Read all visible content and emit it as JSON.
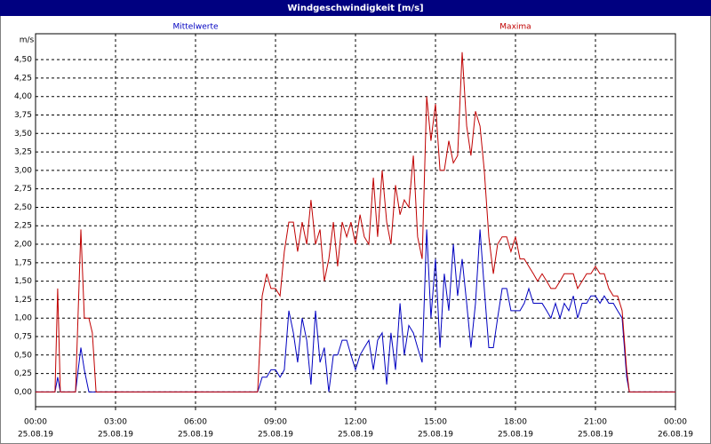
{
  "chart_data": {
    "type": "line",
    "title": "Windgeschwindigkeit [m/s]",
    "y_label": "m/s",
    "xlim": [
      0,
      24
    ],
    "xticks": [
      {
        "value": 0,
        "label": "00:00"
      },
      {
        "value": 3,
        "label": "03:00"
      },
      {
        "value": 6,
        "label": "06:00"
      },
      {
        "value": 9,
        "label": "09:00"
      },
      {
        "value": 12,
        "label": "12:00"
      },
      {
        "value": 15,
        "label": "15:00"
      },
      {
        "value": 18,
        "label": "18:00"
      },
      {
        "value": 21,
        "label": "21:00"
      },
      {
        "value": 24,
        "label": "00:00"
      }
    ],
    "xtick_dates": [
      "25.08.19",
      "25.08.19",
      "25.08.19",
      "25.08.19",
      "25.08.19",
      "25.08.19",
      "25.08.19",
      "25.08.19",
      "26.08.19"
    ],
    "ylim": [
      -0.2,
      4.85
    ],
    "yticks": [
      {
        "value": 0,
        "label": "0,00"
      },
      {
        "value": 0.25,
        "label": "0,25"
      },
      {
        "value": 0.5,
        "label": "0,50"
      },
      {
        "value": 0.75,
        "label": "0,75"
      },
      {
        "value": 1,
        "label": "1,00"
      },
      {
        "value": 1.25,
        "label": "1,25"
      },
      {
        "value": 1.5,
        "label": "1,50"
      },
      {
        "value": 1.75,
        "label": "1,75"
      },
      {
        "value": 2,
        "label": "2,00"
      },
      {
        "value": 2.25,
        "label": "2,25"
      },
      {
        "value": 2.5,
        "label": "2,50"
      },
      {
        "value": 2.75,
        "label": "2,75"
      },
      {
        "value": 3,
        "label": "3,00"
      },
      {
        "value": 3.25,
        "label": "3,25"
      },
      {
        "value": 3.5,
        "label": "3,50"
      },
      {
        "value": 3.75,
        "label": "3,75"
      },
      {
        "value": 4,
        "label": "4,00"
      },
      {
        "value": 4.25,
        "label": "4,25"
      },
      {
        "value": 4.5,
        "label": "4,50"
      }
    ],
    "grid": true,
    "x": [
      0,
      0.73,
      0.83,
      0.93,
      1.5,
      1.7,
      1.83,
      2,
      2.13,
      2.27,
      8.33,
      8.5,
      8.67,
      8.83,
      9,
      9.17,
      9.33,
      9.5,
      9.67,
      9.83,
      10,
      10.17,
      10.33,
      10.5,
      10.67,
      10.83,
      11,
      11.17,
      11.33,
      11.5,
      11.67,
      11.83,
      12,
      12.17,
      12.33,
      12.5,
      12.67,
      12.83,
      13,
      13.17,
      13.33,
      13.5,
      13.67,
      13.83,
      14,
      14.17,
      14.33,
      14.5,
      14.67,
      14.83,
      15,
      15.17,
      15.33,
      15.5,
      15.67,
      15.83,
      16,
      16.17,
      16.33,
      16.5,
      16.67,
      16.83,
      17,
      17.17,
      17.33,
      17.5,
      17.67,
      17.83,
      18,
      18.17,
      18.33,
      18.5,
      18.67,
      18.83,
      19,
      19.17,
      19.33,
      19.5,
      19.67,
      19.83,
      20,
      20.17,
      20.33,
      20.5,
      20.67,
      20.83,
      21,
      21.17,
      21.33,
      21.5,
      21.67,
      21.83,
      22,
      22.17,
      22.27,
      24
    ],
    "series": [
      {
        "name": "Mittelwerte",
        "color": "#0000c0",
        "values": [
          0,
          0,
          0.2,
          0,
          0,
          0.6,
          0.3,
          0,
          0,
          0,
          0,
          0.2,
          0.2,
          0.3,
          0.3,
          0.2,
          0.3,
          1.1,
          0.8,
          0.4,
          1.0,
          0.7,
          0.1,
          1.1,
          0.4,
          0.6,
          0.0,
          0.5,
          0.5,
          0.7,
          0.7,
          0.5,
          0.3,
          0.5,
          0.6,
          0.7,
          0.3,
          0.7,
          0.8,
          0.1,
          0.8,
          0.3,
          1.2,
          0.5,
          0.9,
          0.8,
          0.6,
          0.4,
          2.2,
          1.0,
          1.8,
          0.6,
          1.6,
          1.1,
          2.0,
          1.3,
          1.8,
          1.2,
          0.6,
          1.2,
          2.2,
          1.4,
          0.6,
          0.6,
          1.0,
          1.4,
          1.4,
          1.1,
          1.1,
          1.1,
          1.2,
          1.4,
          1.2,
          1.2,
          1.2,
          1.1,
          1.0,
          1.2,
          1.0,
          1.2,
          1.1,
          1.3,
          1.0,
          1.2,
          1.2,
          1.3,
          1.3,
          1.2,
          1.3,
          1.2,
          1.2,
          1.1,
          1.0,
          0.2,
          0,
          0
        ]
      },
      {
        "name": "Maxima",
        "color": "#c00000",
        "values": [
          0,
          0,
          1.4,
          0,
          0,
          2.2,
          1.0,
          1.0,
          0.8,
          0,
          0,
          1.3,
          1.6,
          1.4,
          1.4,
          1.3,
          1.9,
          2.3,
          2.3,
          1.9,
          2.3,
          2.0,
          2.6,
          2.0,
          2.2,
          1.5,
          1.8,
          2.3,
          1.7,
          2.3,
          2.1,
          2.3,
          2.0,
          2.4,
          2.1,
          2.0,
          2.9,
          2.1,
          3.0,
          2.3,
          2.0,
          2.8,
          2.4,
          2.6,
          2.5,
          3.2,
          2.1,
          1.8,
          4.0,
          3.4,
          3.9,
          3.0,
          3.0,
          3.4,
          3.1,
          3.2,
          4.6,
          3.6,
          3.2,
          3.8,
          3.6,
          3.0,
          2.1,
          1.6,
          2.0,
          2.1,
          2.1,
          1.9,
          2.1,
          1.8,
          1.8,
          1.7,
          1.6,
          1.5,
          1.6,
          1.5,
          1.4,
          1.4,
          1.5,
          1.6,
          1.6,
          1.6,
          1.4,
          1.5,
          1.6,
          1.6,
          1.7,
          1.6,
          1.6,
          1.4,
          1.3,
          1.3,
          1.1,
          0.3,
          0,
          0
        ]
      }
    ]
  }
}
